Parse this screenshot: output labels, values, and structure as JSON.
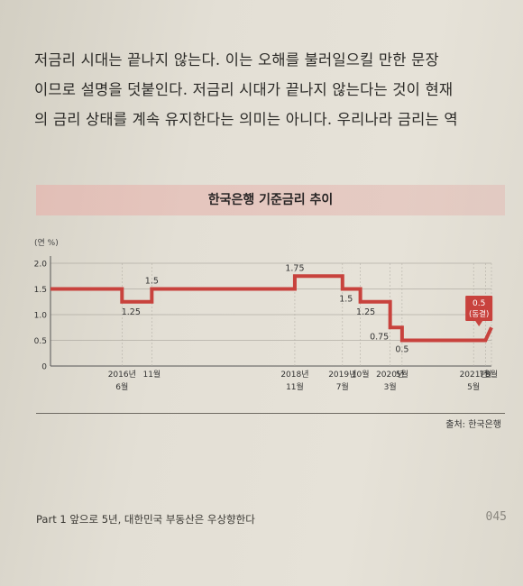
{
  "paragraph": {
    "lines": [
      "저금리 시대는 끝나지 않는다. 이는 오해를 불러일으킬 만한 문장",
      "이므로 설명을 덧붙인다. 저금리 시대가 끝나지 않는다는 것이 현재",
      "의 금리 상태를 계속 유지한다는 의미는 아니다. 우리나라 금리는 역"
    ]
  },
  "source": "출처: 한국은행",
  "footer": {
    "left": "Part 1 앞으로 5년, 대한민국 부동산은 우상향한다",
    "page_number": "045"
  },
  "colors": {
    "line": "#c8423d",
    "label_box": "#c8423d"
  },
  "chart_data": {
    "type": "line",
    "title": "한국은행 기준금리 추이",
    "ylabel": "(연 %)",
    "ylim": [
      0,
      2.0
    ],
    "yticks": [
      "0",
      "0.5",
      "1.0",
      "1.5",
      "2.0"
    ],
    "grid": true,
    "x_tick_labels": [
      {
        "lines": [
          "2016년",
          "6월"
        ],
        "at": "2016-06"
      },
      {
        "lines": [
          "11월"
        ],
        "at": "2016-11"
      },
      {
        "lines": [
          "2018년",
          "11월"
        ],
        "at": "2018-11"
      },
      {
        "lines": [
          "2019년",
          "7월"
        ],
        "at": "2019-07"
      },
      {
        "lines": [
          "10월"
        ],
        "at": "2019-10"
      },
      {
        "lines": [
          "2020년",
          "3월"
        ],
        "at": "2020-03"
      },
      {
        "lines": [
          "5월"
        ],
        "at": "2020-05"
      },
      {
        "lines": [
          "2021년",
          "5월"
        ],
        "at": "2021-05"
      },
      {
        "lines": [
          "7월"
        ],
        "at": "2021-07"
      },
      {
        "lines": [
          "8월"
        ],
        "at": "2021-08"
      }
    ],
    "points": [
      {
        "x": "2015-06",
        "y": 1.5
      },
      {
        "x": "2016-06",
        "y": 1.25
      },
      {
        "x": "2016-11",
        "y": 1.5
      },
      {
        "x": "2017-11",
        "y": 1.5
      },
      {
        "x": "2018-11",
        "y": 1.75
      },
      {
        "x": "2019-07",
        "y": 1.5
      },
      {
        "x": "2019-10",
        "y": 1.25
      },
      {
        "x": "2020-03",
        "y": 0.75
      },
      {
        "x": "2020-05",
        "y": 0.5
      },
      {
        "x": "2021-05",
        "y": 0.5
      },
      {
        "x": "2021-07",
        "y": 0.5
      },
      {
        "x": "2021-08",
        "y": 0.75
      }
    ],
    "annotations": [
      {
        "text": "1.25",
        "x": "2016-06",
        "y": 1.25
      },
      {
        "text": "1.5",
        "x": "2016-11",
        "y": 1.5
      },
      {
        "text": "1.75",
        "x": "2018-11",
        "y": 1.75
      },
      {
        "text": "1.5",
        "x": "2019-07",
        "y": 1.5
      },
      {
        "text": "1.25",
        "x": "2019-10",
        "y": 1.25
      },
      {
        "text": "0.75",
        "x": "2020-03",
        "y": 0.75
      },
      {
        "text": "0.5",
        "x": "2020-05",
        "y": 0.5
      }
    ],
    "callout": {
      "value": "0.5",
      "note": "(동결)",
      "x": "2021-05",
      "y": 0.5
    }
  }
}
